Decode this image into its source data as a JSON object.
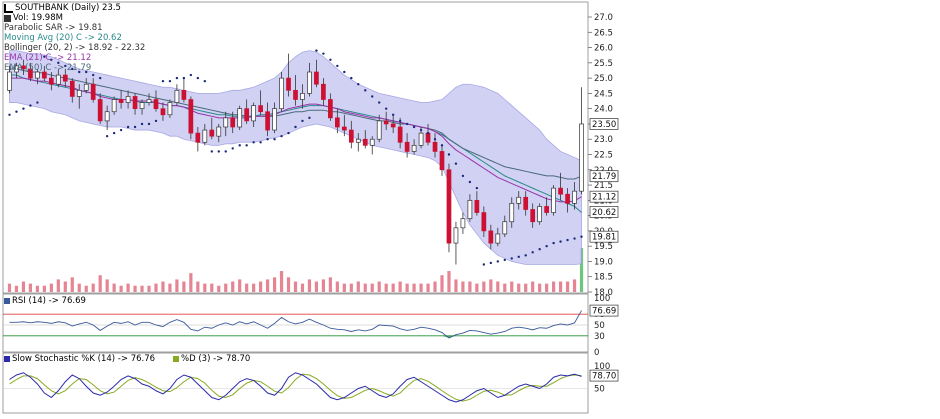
{
  "chart_data": {
    "type": "candlestick",
    "ticker_line": "SOUTHBANK (Daily) 23.5",
    "volume_line": "Vol: 19.98M",
    "indicators": {
      "psar": "Parabolic SAR -> 19.81",
      "ma20": "Moving Avg (20) C -> 20.62",
      "bollinger": "Bollinger (20, 2) -> 18.92 - 22.32",
      "ema21": "EMA (21) C -> 21.12",
      "ema50": "EMA (50) C -> 21.79",
      "rsi": "RSI (14) -> 76.69",
      "stoch_k": "Slow Stochastic %K (14) -> 76.76",
      "stoch_d": "%D (3) -> 78.70"
    },
    "y_ticks": [
      "27.0",
      "26.5",
      "26.0",
      "25.5",
      "25.0",
      "24.5",
      "24.0",
      "23.5",
      "23.0",
      "22.5",
      "22.0",
      "21.5",
      "21.0",
      "20.5",
      "20.0",
      "19.5",
      "19.0",
      "18.5",
      "18.0"
    ],
    "price_tags": [
      "23.50",
      "21.79",
      "21.12",
      "20.62",
      "19.81"
    ],
    "rsi_ticks": [
      "100",
      "70",
      "50",
      "30",
      "0"
    ],
    "rsi_tag": "76.69",
    "stoch_ticks": [
      "100",
      "50"
    ],
    "stoch_tag": "78.70",
    "colors": {
      "up": "#ffffff",
      "down": "#cc1133",
      "band_fill": "#c9c9f3",
      "band_edge": "#9a9ae0",
      "ma20": "#2a8a8a",
      "ema21": "#9933aa",
      "ema50": "#4a6a7a",
      "psar": "#1a2a7a",
      "volume": "#e07080",
      "volume_last": "#55bb66",
      "rsi_line": "#3a5a9a",
      "rsi_70": "#e04040",
      "rsi_30": "#209030",
      "stoch_k": "#2a2aaa",
      "stoch_d": "#88aa22",
      "grid": "#dddddd"
    },
    "ohlc": [
      [
        24.6,
        25.4,
        24.5,
        25.2
      ],
      [
        25.2,
        25.5,
        25.0,
        25.4
      ],
      [
        25.4,
        25.6,
        25.1,
        25.3
      ],
      [
        25.3,
        25.5,
        24.9,
        25.0
      ],
      [
        25.0,
        25.3,
        24.8,
        25.2
      ],
      [
        25.2,
        25.4,
        24.9,
        25.0
      ],
      [
        25.0,
        25.2,
        24.6,
        24.8
      ],
      [
        24.8,
        25.3,
        24.7,
        25.1
      ],
      [
        25.1,
        25.3,
        24.7,
        24.9
      ],
      [
        24.9,
        25.0,
        24.2,
        24.4
      ],
      [
        24.4,
        24.8,
        24.0,
        24.6
      ],
      [
        24.6,
        25.0,
        24.5,
        24.8
      ],
      [
        24.8,
        25.0,
        24.2,
        24.3
      ],
      [
        24.3,
        24.5,
        23.5,
        23.6
      ],
      [
        23.6,
        24.1,
        23.3,
        23.9
      ],
      [
        23.9,
        24.4,
        23.8,
        24.3
      ],
      [
        24.3,
        24.6,
        24.0,
        24.2
      ],
      [
        24.2,
        24.6,
        24.0,
        24.4
      ],
      [
        24.4,
        24.5,
        23.8,
        24.0
      ],
      [
        24.0,
        24.3,
        23.8,
        24.2
      ],
      [
        24.2,
        24.5,
        24.1,
        24.3
      ],
      [
        24.3,
        24.6,
        23.9,
        24.0
      ],
      [
        24.0,
        24.2,
        23.6,
        23.8
      ],
      [
        23.8,
        24.3,
        23.7,
        24.2
      ],
      [
        24.2,
        24.8,
        24.1,
        24.6
      ],
      [
        24.6,
        25.0,
        24.2,
        24.3
      ],
      [
        24.3,
        24.4,
        23.0,
        23.2
      ],
      [
        23.2,
        23.4,
        22.6,
        22.9
      ],
      [
        22.9,
        23.5,
        22.8,
        23.3
      ],
      [
        23.3,
        23.7,
        23.0,
        23.1
      ],
      [
        23.1,
        23.5,
        22.9,
        23.4
      ],
      [
        23.4,
        23.9,
        23.1,
        23.7
      ],
      [
        23.7,
        23.9,
        23.2,
        23.4
      ],
      [
        23.4,
        24.1,
        23.3,
        24.0
      ],
      [
        24.0,
        24.3,
        23.5,
        23.6
      ],
      [
        23.6,
        24.2,
        23.4,
        24.1
      ],
      [
        24.1,
        24.6,
        23.8,
        23.9
      ],
      [
        23.9,
        24.2,
        23.1,
        23.3
      ],
      [
        23.3,
        24.2,
        23.2,
        24.0
      ],
      [
        24.0,
        25.2,
        23.9,
        25.0
      ],
      [
        25.0,
        25.8,
        24.4,
        24.6
      ],
      [
        24.6,
        25.1,
        24.1,
        24.3
      ],
      [
        24.3,
        24.8,
        24.0,
        24.5
      ],
      [
        24.5,
        25.5,
        24.4,
        25.2
      ],
      [
        25.2,
        25.6,
        24.7,
        24.8
      ],
      [
        24.8,
        25.0,
        24.1,
        24.3
      ],
      [
        24.3,
        24.5,
        23.6,
        23.7
      ],
      [
        23.7,
        24.0,
        23.2,
        23.4
      ],
      [
        23.4,
        23.8,
        23.1,
        23.3
      ],
      [
        23.3,
        23.6,
        22.7,
        22.9
      ],
      [
        22.9,
        23.2,
        22.6,
        23.0
      ],
      [
        23.0,
        23.3,
        22.7,
        22.8
      ],
      [
        22.8,
        23.1,
        22.5,
        23.0
      ],
      [
        23.0,
        23.8,
        22.9,
        23.6
      ],
      [
        23.6,
        23.9,
        23.3,
        23.5
      ],
      [
        23.5,
        23.8,
        23.2,
        23.4
      ],
      [
        23.4,
        23.7,
        22.7,
        22.9
      ],
      [
        22.9,
        23.2,
        22.4,
        22.6
      ],
      [
        22.6,
        23.0,
        22.5,
        22.8
      ],
      [
        22.8,
        23.4,
        22.7,
        23.2
      ],
      [
        23.2,
        23.5,
        22.8,
        22.9
      ],
      [
        22.9,
        23.2,
        22.4,
        22.6
      ],
      [
        22.6,
        22.8,
        21.8,
        22.0
      ],
      [
        22.0,
        22.2,
        19.3,
        19.6
      ],
      [
        19.6,
        20.3,
        18.9,
        20.1
      ],
      [
        20.1,
        20.6,
        19.9,
        20.4
      ],
      [
        20.4,
        21.2,
        20.3,
        21.0
      ],
      [
        21.0,
        21.3,
        20.5,
        20.6
      ],
      [
        20.6,
        20.8,
        19.8,
        20.0
      ],
      [
        20.0,
        20.2,
        19.4,
        19.6
      ],
      [
        19.6,
        20.1,
        19.5,
        19.9
      ],
      [
        19.9,
        20.5,
        19.8,
        20.3
      ],
      [
        20.3,
        21.1,
        20.1,
        20.9
      ],
      [
        20.9,
        21.3,
        20.7,
        21.1
      ],
      [
        21.1,
        21.3,
        20.5,
        20.7
      ],
      [
        20.7,
        20.9,
        20.1,
        20.3
      ],
      [
        20.3,
        20.9,
        20.2,
        20.8
      ],
      [
        20.8,
        21.1,
        20.5,
        20.6
      ],
      [
        20.6,
        21.5,
        20.5,
        21.4
      ],
      [
        21.4,
        21.9,
        21.0,
        21.2
      ],
      [
        21.2,
        21.4,
        20.6,
        20.9
      ],
      [
        20.9,
        21.6,
        20.7,
        21.3
      ],
      [
        21.3,
        24.7,
        21.2,
        23.5
      ]
    ],
    "ma20": [
      25.1,
      25.1,
      25.0,
      24.95,
      24.9,
      24.85,
      24.8,
      24.75,
      24.7,
      24.65,
      24.6,
      24.55,
      24.5,
      24.45,
      24.4,
      24.35,
      24.3,
      24.3,
      24.25,
      24.2,
      24.2,
      24.2,
      24.15,
      24.1,
      24.1,
      24.05,
      24.0,
      23.95,
      23.9,
      23.85,
      23.8,
      23.8,
      23.75,
      23.75,
      23.75,
      23.75,
      23.8,
      23.8,
      23.85,
      23.9,
      23.95,
      24.0,
      24.05,
      24.1,
      24.1,
      24.1,
      24.05,
      24.0,
      23.95,
      23.9,
      23.85,
      23.8,
      23.75,
      23.7,
      23.65,
      23.6,
      23.55,
      23.5,
      23.45,
      23.4,
      23.35,
      23.25,
      23.15,
      23.0,
      22.85,
      22.7,
      22.55,
      22.4,
      22.25,
      22.1,
      21.95,
      21.8,
      21.7,
      21.6,
      21.5,
      21.4,
      21.3,
      21.2,
      21.1,
      21.0,
      20.9,
      20.8,
      20.6
    ],
    "bb_upper": [
      25.9,
      25.9,
      25.85,
      25.8,
      25.8,
      25.75,
      25.7,
      25.6,
      25.5,
      25.4,
      25.3,
      25.25,
      25.2,
      25.15,
      25.1,
      25.05,
      25.0,
      24.95,
      24.9,
      24.85,
      24.8,
      24.75,
      24.7,
      24.7,
      24.65,
      24.6,
      24.55,
      24.5,
      24.5,
      24.5,
      24.5,
      24.55,
      24.6,
      24.6,
      24.65,
      24.7,
      24.8,
      24.9,
      25.0,
      25.2,
      25.5,
      25.7,
      25.85,
      25.9,
      25.85,
      25.7,
      25.5,
      25.3,
      25.1,
      24.95,
      24.8,
      24.7,
      24.6,
      24.5,
      24.45,
      24.4,
      24.35,
      24.3,
      24.25,
      24.2,
      24.2,
      24.25,
      24.3,
      24.5,
      24.7,
      24.8,
      24.8,
      24.75,
      24.7,
      24.6,
      24.5,
      24.3,
      24.1,
      23.9,
      23.7,
      23.5,
      23.3,
      23.0,
      22.8,
      22.6,
      22.5,
      22.4,
      22.3
    ],
    "bb_lower": [
      24.2,
      24.2,
      24.15,
      24.1,
      24.05,
      24.0,
      23.9,
      23.85,
      23.8,
      23.7,
      23.6,
      23.55,
      23.5,
      23.45,
      23.4,
      23.4,
      23.4,
      23.35,
      23.3,
      23.3,
      23.3,
      23.25,
      23.2,
      23.1,
      23.1,
      23.0,
      22.95,
      22.9,
      22.85,
      22.8,
      22.8,
      22.85,
      22.85,
      22.9,
      22.9,
      22.9,
      22.95,
      23.0,
      23.05,
      23.1,
      23.2,
      23.3,
      23.4,
      23.45,
      23.5,
      23.45,
      23.4,
      23.3,
      23.2,
      23.1,
      23.0,
      22.9,
      22.8,
      22.75,
      22.7,
      22.65,
      22.6,
      22.55,
      22.5,
      22.45,
      22.4,
      22.3,
      22.1,
      21.6,
      21.1,
      20.6,
      20.2,
      19.9,
      19.6,
      19.4,
      19.2,
      19.1,
      19.0,
      18.95,
      18.9,
      18.9,
      18.9,
      18.9,
      18.9,
      18.9,
      18.9,
      18.9,
      18.92
    ],
    "ema21": [
      25.0,
      25.0,
      25.0,
      24.95,
      24.9,
      24.9,
      24.85,
      24.8,
      24.75,
      24.7,
      24.6,
      24.55,
      24.5,
      24.4,
      24.35,
      24.3,
      24.3,
      24.3,
      24.25,
      24.25,
      24.25,
      24.2,
      24.15,
      24.1,
      24.1,
      24.05,
      23.95,
      23.85,
      23.8,
      23.75,
      23.7,
      23.7,
      23.7,
      23.7,
      23.7,
      23.75,
      23.75,
      23.75,
      23.8,
      23.9,
      24.0,
      24.05,
      24.1,
      24.15,
      24.15,
      24.1,
      24.05,
      24.0,
      23.9,
      23.85,
      23.8,
      23.75,
      23.7,
      23.7,
      23.65,
      23.6,
      23.55,
      23.5,
      23.45,
      23.4,
      23.35,
      23.25,
      23.1,
      22.85,
      22.65,
      22.5,
      22.35,
      22.2,
      22.05,
      21.9,
      21.75,
      21.65,
      21.55,
      21.45,
      21.35,
      21.25,
      21.15,
      21.05,
      21.0,
      20.95,
      20.95,
      20.98,
      21.12
    ],
    "ema50": [
      25.3,
      25.3,
      25.25,
      25.2,
      25.2,
      25.15,
      25.1,
      25.05,
      25.0,
      24.95,
      24.9,
      24.85,
      24.8,
      24.75,
      24.7,
      24.65,
      24.6,
      24.55,
      24.5,
      24.45,
      24.4,
      24.35,
      24.3,
      24.25,
      24.2,
      24.15,
      24.1,
      24.05,
      24.0,
      23.95,
      23.9,
      23.85,
      23.8,
      23.8,
      23.75,
      23.75,
      23.75,
      23.75,
      23.75,
      23.8,
      23.85,
      23.9,
      23.9,
      23.95,
      23.95,
      23.95,
      23.9,
      23.9,
      23.85,
      23.8,
      23.75,
      23.7,
      23.65,
      23.6,
      23.6,
      23.55,
      23.5,
      23.5,
      23.45,
      23.4,
      23.35,
      23.3,
      23.2,
      23.0,
      22.85,
      22.7,
      22.6,
      22.5,
      22.4,
      22.3,
      22.2,
      22.1,
      22.05,
      22.0,
      21.95,
      21.9,
      21.85,
      21.8,
      21.8,
      21.75,
      21.7,
      21.7,
      21.79
    ],
    "psar": [
      23.8,
      23.9,
      24.0,
      24.1,
      24.2,
      25.7,
      25.6,
      25.5,
      25.4,
      25.3,
      25.2,
      25.2,
      25.1,
      25.0,
      23.1,
      23.2,
      23.3,
      23.4,
      23.4,
      23.5,
      23.5,
      23.6,
      24.9,
      24.9,
      25.0,
      25.0,
      25.1,
      25.0,
      24.9,
      22.6,
      22.6,
      22.6,
      22.7,
      22.8,
      22.8,
      22.9,
      22.9,
      23.0,
      23.0,
      23.1,
      23.2,
      23.4,
      23.6,
      23.7,
      25.9,
      25.8,
      25.6,
      25.4,
      25.2,
      25.0,
      24.8,
      24.6,
      24.4,
      24.2,
      24.0,
      23.8,
      23.6,
      23.5,
      23.4,
      23.3,
      23.2,
      23.0,
      22.8,
      22.5,
      22.2,
      21.8,
      21.6,
      21.4,
      18.9,
      18.95,
      19.0,
      19.05,
      19.1,
      19.15,
      19.2,
      19.3,
      19.4,
      19.5,
      19.6,
      19.65,
      19.7,
      19.75,
      19.81
    ],
    "volume": [
      4,
      3,
      5,
      4,
      3,
      3,
      4,
      6,
      5,
      7,
      4,
      3,
      4,
      8,
      6,
      4,
      3,
      4,
      3,
      3,
      3,
      4,
      5,
      4,
      6,
      5,
      9,
      5,
      4,
      4,
      3,
      4,
      5,
      6,
      4,
      4,
      5,
      6,
      7,
      10,
      7,
      5,
      4,
      6,
      5,
      6,
      7,
      5,
      4,
      4,
      5,
      4,
      4,
      5,
      4,
      4,
      5,
      4,
      4,
      4,
      4,
      5,
      8,
      10,
      6,
      5,
      5,
      4,
      5,
      6,
      5,
      4,
      5,
      4,
      4,
      5,
      4,
      4,
      5,
      5,
      5,
      6,
      21
    ],
    "rsi": [
      55,
      55,
      56,
      54,
      56,
      55,
      53,
      56,
      54,
      48,
      52,
      55,
      50,
      40,
      48,
      55,
      53,
      56,
      50,
      55,
      55,
      50,
      47,
      55,
      60,
      55,
      42,
      39,
      46,
      44,
      50,
      54,
      50,
      56,
      52,
      56,
      50,
      44,
      53,
      64,
      56,
      52,
      55,
      61,
      55,
      50,
      44,
      42,
      41,
      38,
      41,
      39,
      42,
      50,
      49,
      48,
      43,
      40,
      42,
      46,
      44,
      41,
      36,
      26,
      32,
      35,
      40,
      39,
      36,
      33,
      35,
      38,
      44,
      46,
      44,
      41,
      45,
      44,
      49,
      52,
      50,
      54,
      76.69
    ],
    "stoch_k": [
      70,
      80,
      85,
      75,
      60,
      40,
      30,
      45,
      65,
      80,
      72,
      55,
      40,
      35,
      42,
      55,
      70,
      78,
      72,
      60,
      55,
      45,
      38,
      50,
      70,
      80,
      75,
      60,
      45,
      30,
      25,
      35,
      50,
      65,
      72,
      68,
      55,
      40,
      35,
      50,
      75,
      85,
      80,
      70,
      60,
      45,
      30,
      25,
      30,
      40,
      50,
      55,
      45,
      35,
      30,
      38,
      55,
      70,
      75,
      65,
      55,
      45,
      35,
      25,
      20,
      25,
      35,
      45,
      50,
      40,
      30,
      35,
      45,
      55,
      60,
      55,
      50,
      60,
      75,
      80,
      78,
      82,
      76.76
    ],
    "stoch_d": [
      60,
      70,
      78,
      78,
      72,
      58,
      45,
      38,
      45,
      60,
      72,
      70,
      58,
      45,
      38,
      42,
      55,
      68,
      74,
      70,
      62,
      53,
      45,
      43,
      52,
      65,
      75,
      72,
      62,
      46,
      33,
      30,
      36,
      50,
      62,
      68,
      65,
      55,
      44,
      40,
      52,
      70,
      82,
      80,
      72,
      60,
      46,
      34,
      28,
      30,
      38,
      46,
      50,
      45,
      38,
      33,
      40,
      55,
      68,
      72,
      66,
      56,
      45,
      35,
      26,
      22,
      26,
      35,
      44,
      46,
      42,
      35,
      36,
      45,
      53,
      57,
      55,
      55,
      63,
      72,
      78,
      80,
      78.7
    ]
  }
}
